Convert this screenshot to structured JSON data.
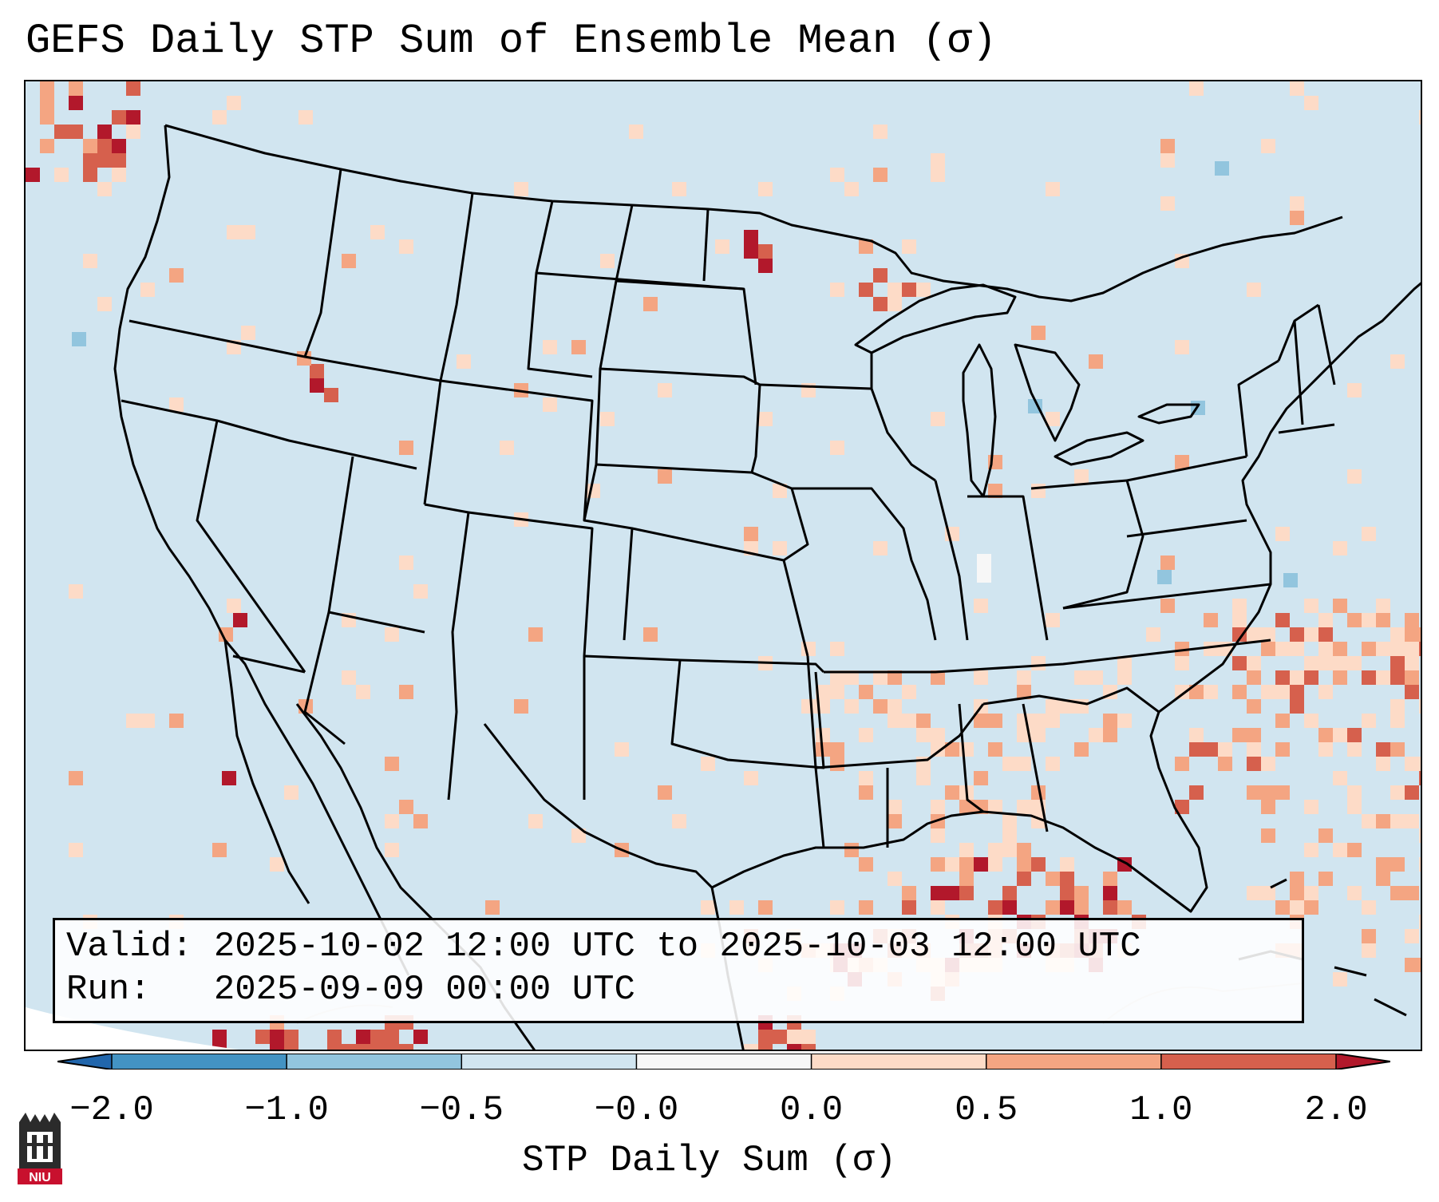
{
  "title": "GEFS Daily STP Sum of Ensemble Mean (σ)",
  "colors": {
    "ocean_land_base": "#d1e5f0",
    "light_blue": "#92c5de",
    "mid_blue": "#4393c3",
    "dark_blue": "#2166ac",
    "near_zero_neg": "#f7f7f7",
    "light_red": "#fddbc7",
    "mid_red": "#f4a582",
    "strong_red": "#d6604d",
    "dark_red": "#b2182b"
  },
  "info": {
    "valid_line": "Valid: 2025-10-02 12:00 UTC to 2025-10-03 12:00 UTC",
    "run_line": "Run:   2025-09-09 00:00 UTC"
  },
  "colorbar": {
    "ticks": [
      "−2.0",
      "−1.0",
      "−0.5",
      "−0.0",
      "0.0",
      "0.5",
      "1.0",
      "2.0"
    ],
    "label": "STP Daily Sum (σ)",
    "segment_colors": [
      "#4393c3",
      "#92c5de",
      "#d1e5f0",
      "#f7f7f7",
      "#fddbc7",
      "#f4a582",
      "#d6604d"
    ],
    "under_color": "#2166ac",
    "over_color": "#b2182b"
  },
  "logo": {
    "text": "NIU"
  }
}
